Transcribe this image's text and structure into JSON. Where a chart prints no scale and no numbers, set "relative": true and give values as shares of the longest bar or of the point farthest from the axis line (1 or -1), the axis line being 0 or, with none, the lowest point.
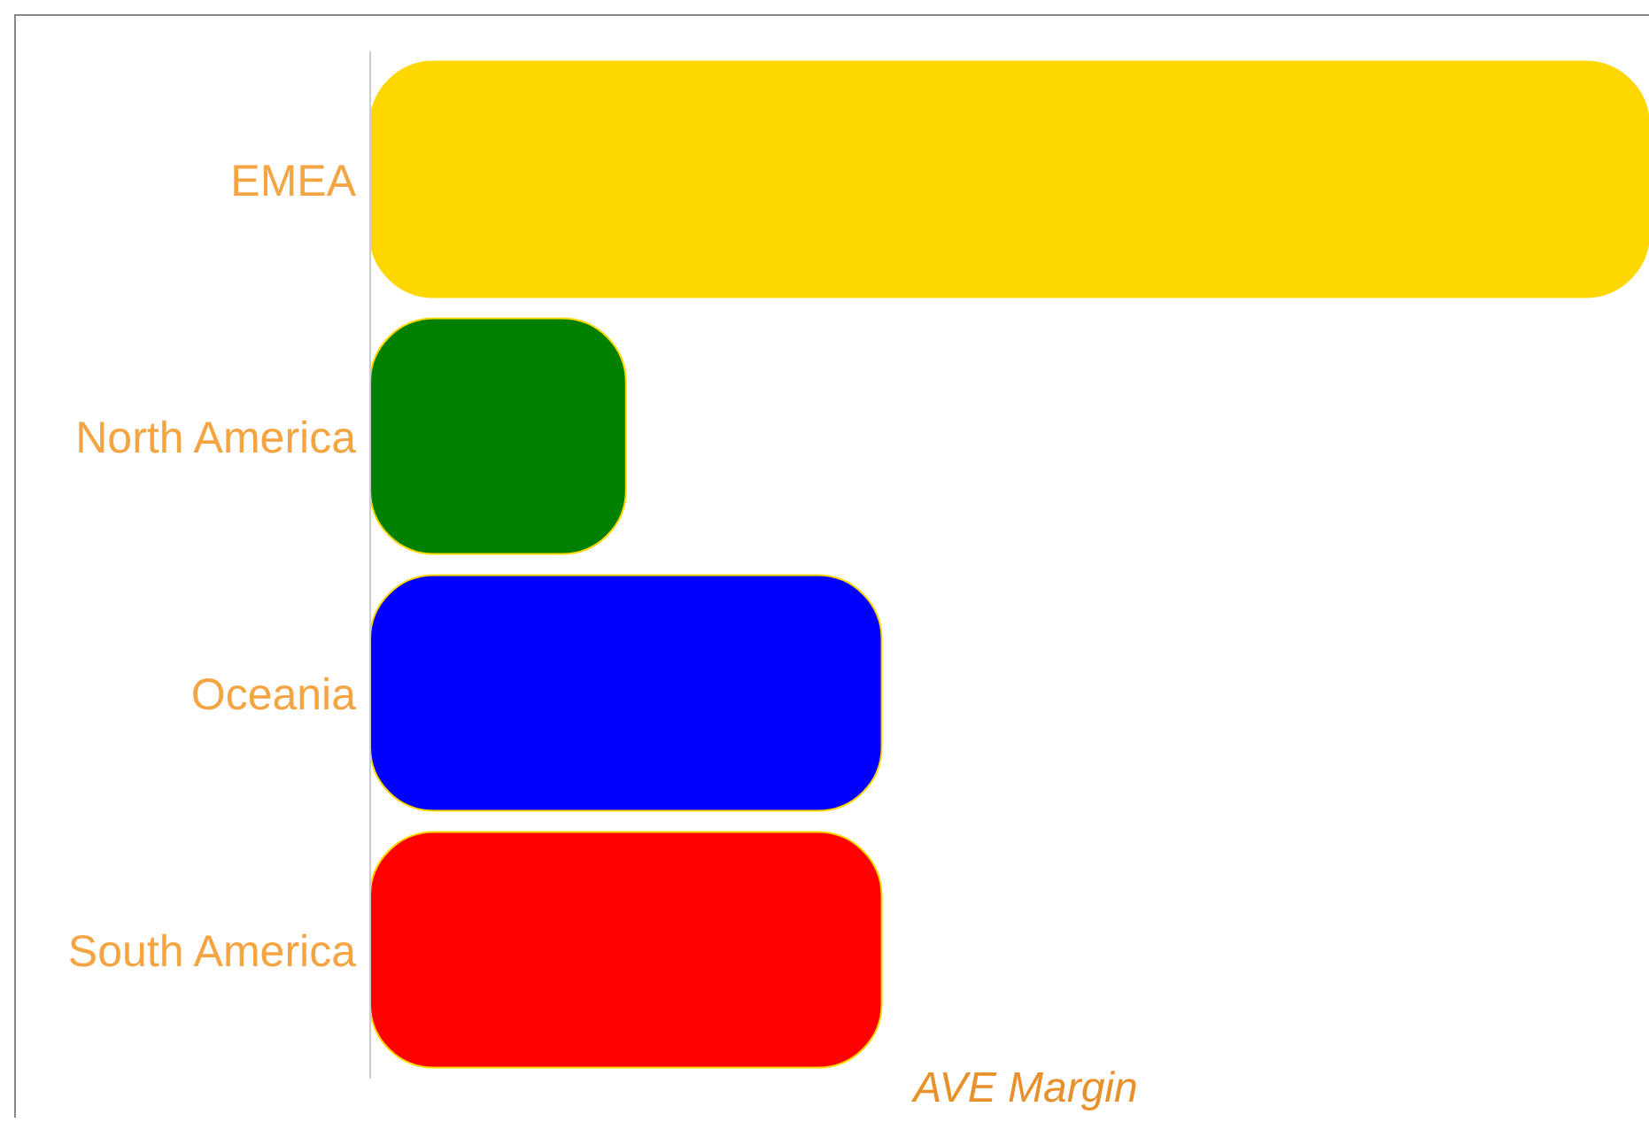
{
  "chart_data": {
    "type": "bar",
    "orientation": "horizontal",
    "relative": true,
    "xlabel": "AVE Margin",
    "categories": [
      "EMEA",
      "North America",
      "Oceania",
      "South America"
    ],
    "values": [
      1,
      0.2,
      0.4,
      0.4
    ],
    "colors": [
      "#ffd700",
      "#008000",
      "#0000ff",
      "#ff0000"
    ]
  }
}
